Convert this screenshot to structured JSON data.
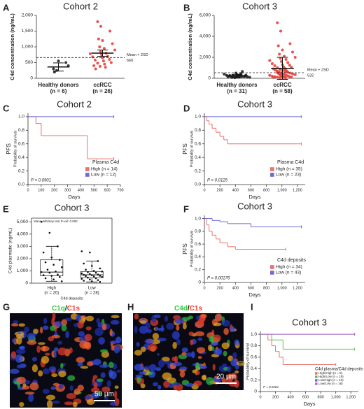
{
  "chart_data": [
    {
      "panel": "A",
      "type": "dotplot",
      "title": "Cohort 2",
      "y_label": "C4d concentration (ng/mL)",
      "categories": [
        "Healthy donors",
        "ccRCC"
      ],
      "category_counts": [
        "(n = 6)",
        "(n = 26)"
      ],
      "groups": [
        [
          300,
          250,
          500,
          200,
          550,
          400
        ],
        [
          1800,
          1650,
          1500,
          1250,
          1200,
          1100,
          1000,
          950,
          900,
          850,
          800,
          780,
          750,
          700,
          680,
          650,
          600,
          580,
          550,
          500,
          480,
          450,
          400,
          380,
          350,
          300
        ]
      ],
      "means": [
        360,
        800
      ],
      "errors": [
        130,
        100
      ],
      "colors": [
        "#222222",
        "#e8403c"
      ],
      "ylim": [
        0,
        2000
      ],
      "yticks": [
        0,
        500,
        {
          "value": 1000,
          "label": "1,000"
        },
        {
          "value": 1500,
          "label": "1,500"
        },
        {
          "value": 2000,
          "label": "2,000"
        }
      ],
      "reference": {
        "label": "Mean + 2SD",
        "value": 660
      }
    },
    {
      "panel": "B",
      "type": "dotplot",
      "title": "Cohort 3",
      "y_label": "C4d concentration (ng/mL)",
      "categories": [
        "Healthy donors",
        "ccRCC"
      ],
      "category_counts": [
        "(n = 31)",
        "(n = 58)"
      ],
      "groups": [
        [
          100,
          150,
          200,
          250,
          300,
          120,
          180,
          220,
          90,
          60,
          340,
          400,
          500,
          650,
          280,
          130,
          170,
          210,
          260,
          310,
          80,
          110,
          140,
          190,
          230,
          270,
          350,
          450,
          160,
          240,
          200
        ],
        [
          5300,
          4500,
          3300,
          3100,
          2700,
          2500,
          2300,
          2100,
          2000,
          1900,
          1800,
          1700,
          1600,
          1500,
          1400,
          1300,
          1250,
          1200,
          1100,
          1050,
          1000,
          950,
          900,
          850,
          800,
          780,
          750,
          700,
          680,
          650,
          620,
          600,
          580,
          550,
          520,
          500,
          480,
          450,
          420,
          400,
          380,
          350,
          320,
          300,
          280,
          250,
          230,
          200,
          180,
          160,
          150,
          140,
          120,
          100,
          90,
          80,
          70,
          60
        ]
      ],
      "means": [
        230,
        950
      ],
      "errors": [
        150,
        1050
      ],
      "colors": [
        "#222222",
        "#e8403c"
      ],
      "ylim": [
        0,
        6000
      ],
      "yticks": [
        0,
        {
          "value": 2000,
          "label": "2,000"
        },
        {
          "value": 4000,
          "label": "4,000"
        },
        {
          "value": 6000,
          "label": "6,000"
        }
      ],
      "reference": {
        "label": "Mean + 2SD",
        "value": 532
      }
    },
    {
      "panel": "C",
      "type": "km",
      "title": "Cohort 2",
      "y_label": "Probability of survival",
      "y_title": "PFS",
      "x_label": "Days",
      "legend_title": "Plasma C4d",
      "p_label": "P = 0.0901",
      "series": [
        {
          "name": "High (n = 14)",
          "color": "#e8736c",
          "x": [
            0,
            60,
            100,
            450,
            650
          ],
          "values": [
            1,
            0.9,
            0.72,
            0.38,
            0.38
          ]
        },
        {
          "name": "Low (n = 12)",
          "color": "#6b6bd6",
          "x": [
            0,
            650
          ],
          "values": [
            1,
            1
          ]
        }
      ],
      "xlim": [
        0,
        700
      ],
      "xticks": [
        0,
        100,
        200,
        300,
        400,
        500,
        600,
        700
      ],
      "ylim": [
        0,
        1.05
      ],
      "yticks": [
        {
          "value": 0,
          "label": "0.0"
        },
        0.2,
        0.4,
        0.6,
        0.8,
        {
          "value": 1,
          "label": "1.0"
        }
      ]
    },
    {
      "panel": "D",
      "type": "km",
      "title": "Cohort 3",
      "y_label": "Probability of survival",
      "y_title": "PFS",
      "x_label": "Days",
      "legend_title": "Plasma C4d",
      "p_label": "P = 0.0125",
      "series": [
        {
          "name": "High (n = 35)",
          "color": "#e8736c",
          "x": [
            0,
            30,
            60,
            100,
            150,
            200,
            250,
            300,
            1250
          ],
          "values": [
            1,
            0.94,
            0.89,
            0.83,
            0.77,
            0.71,
            0.66,
            0.6,
            0.6
          ]
        },
        {
          "name": "Low (n = 23)",
          "color": "#6b6bd6",
          "x": [
            0,
            1250
          ],
          "values": [
            1,
            1
          ]
        }
      ],
      "xlim": [
        0,
        1300
      ],
      "xticks": [
        0,
        200,
        400,
        600,
        800,
        {
          "value": 1000,
          "label": "1,000"
        },
        {
          "value": 1200,
          "label": "1,200"
        }
      ],
      "ylim": [
        0,
        1.05
      ],
      "yticks": [
        {
          "value": 0,
          "label": "0.0"
        },
        0.2,
        0.4,
        0.6,
        0.8,
        {
          "value": 1,
          "label": "1.0"
        }
      ]
    },
    {
      "panel": "E",
      "type": "box",
      "title": "Cohort 3",
      "y_label": "C4d plasmatic (ng/mL)",
      "x_label": "C4d deposits",
      "annotation": "Mann-Whitney test P-val: 0.092",
      "categories": [
        "High",
        "Low"
      ],
      "category_counts": [
        "(n = 20)",
        "(n = 28)"
      ],
      "boxes": [
        {
          "min": 150,
          "q1": 600,
          "median": 900,
          "q3": 1900,
          "max": 3000
        },
        {
          "min": 100,
          "q1": 450,
          "median": 680,
          "q3": 950,
          "max": 1800
        }
      ],
      "groups": [
        [
          5000,
          4100,
          3000,
          2500,
          2100,
          1900,
          1700,
          1500,
          1300,
          1100,
          950,
          900,
          850,
          700,
          650,
          600,
          500,
          400,
          300,
          150
        ],
        [
          2600,
          2500,
          1800,
          1600,
          1400,
          1200,
          1100,
          1000,
          950,
          900,
          850,
          800,
          750,
          700,
          680,
          650,
          600,
          580,
          550,
          500,
          450,
          400,
          350,
          300,
          250,
          200,
          150,
          100
        ]
      ],
      "ylim": [
        0,
        5300
      ],
      "yticks": [
        0,
        {
          "value": 1000,
          "label": "1,000"
        },
        {
          "value": 2000,
          "label": "2,000"
        },
        {
          "value": 3000,
          "label": "3,000"
        },
        {
          "value": 4000,
          "label": "4,000"
        },
        {
          "value": 5000,
          "label": "5,000"
        }
      ]
    },
    {
      "panel": "F",
      "type": "km",
      "title": "Cohort 3",
      "y_label": "Probability of survival",
      "y_title": "PFS",
      "x_label": "Days",
      "legend_title": "C4d deposits",
      "p_label": "P = 0.00176",
      "series": [
        {
          "name": "High (n = 34)",
          "color": "#e8736c",
          "x": [
            0,
            30,
            60,
            100,
            150,
            200,
            300,
            400,
            1050
          ],
          "values": [
            1,
            0.9,
            0.8,
            0.74,
            0.68,
            0.62,
            0.56,
            0.52,
            0.52
          ]
        },
        {
          "name": "Low (n = 43)",
          "color": "#6b6bd6",
          "x": [
            0,
            100,
            200,
            300,
            600,
            1250
          ],
          "values": [
            1,
            0.97,
            0.95,
            0.92,
            0.87,
            0.87
          ]
        }
      ],
      "xlim": [
        0,
        1300
      ],
      "xticks": [
        0,
        200,
        400,
        600,
        800,
        {
          "value": 1000,
          "label": "1,000"
        },
        {
          "value": 1200,
          "label": "1,200"
        }
      ],
      "ylim": [
        0,
        1.05
      ],
      "yticks": [
        0,
        0.2,
        0.4,
        0.6,
        0.8,
        {
          "value": 1,
          "label": "1.0"
        }
      ]
    },
    {
      "panel": "G",
      "type": "image",
      "stains": [
        "C1q",
        "C1s"
      ],
      "separator": "/",
      "stain_colors": [
        "#2ecc40",
        "#ff3b30"
      ],
      "scale_label": "50 µm"
    },
    {
      "panel": "H",
      "type": "image",
      "stains": [
        "C4d",
        "C1s"
      ],
      "separator": "/",
      "stain_colors": [
        "#2ecc40",
        "#ff3b30"
      ],
      "scale_label": "20 µm"
    },
    {
      "panel": "I",
      "type": "km",
      "title": "Cohort 3",
      "y_label": "Probability of survival",
      "y_title": "PFS",
      "x_label": "Days",
      "legend_title": "C4d plasma/C4d deposits",
      "p_label": "P = 0.0364",
      "series": [
        {
          "name": "High/High (n = 9)",
          "color": "#e8736c",
          "x": [
            0,
            100,
            150,
            200,
            250,
            300,
            1000
          ],
          "values": [
            1,
            0.9,
            0.8,
            0.7,
            0.6,
            0.47,
            0.47
          ]
        },
        {
          "name": "High/Low (n = 19)",
          "color": "#5cbf5c",
          "x": [
            0,
            150,
            300,
            1250
          ],
          "values": [
            1,
            0.9,
            0.74,
            0.74
          ]
        },
        {
          "name": "Low/High (n = 10)",
          "color": "#6b6bd6",
          "x": [
            0,
            1250
          ],
          "values": [
            1,
            1
          ]
        },
        {
          "name": "Low/Low (n = 16)",
          "color": "#b070c0",
          "x": [
            0,
            1250
          ],
          "values": [
            1,
            1
          ]
        }
      ],
      "xlim": [
        0,
        1300
      ],
      "xticks": [
        0,
        200,
        400,
        600,
        800,
        {
          "value": 1000,
          "label": "1,000"
        },
        {
          "value": 1200,
          "label": "1,200"
        }
      ],
      "ylim": [
        0,
        1.05
      ],
      "yticks": [
        0,
        0.2,
        0.4,
        0.6,
        0.8,
        {
          "value": 1,
          "label": "1.0"
        }
      ]
    }
  ]
}
